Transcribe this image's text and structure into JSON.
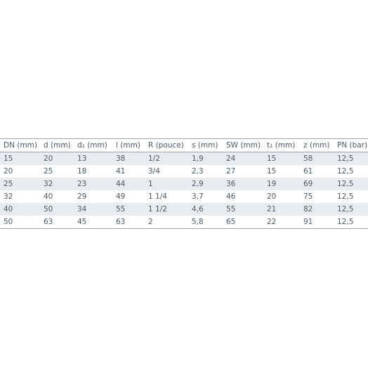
{
  "table": {
    "header": [
      "DN (mm)",
      "d (mm)",
      "d₂ (mm)",
      "l (mm)",
      "R (pouce)",
      "s (mm)",
      "SW (mm)",
      "t₁ (mm)",
      "z (mm)",
      "PN (bar)"
    ],
    "rows": [
      [
        "15",
        "20",
        "13",
        "38",
        "1/2",
        "1,9",
        "24",
        "15",
        "58",
        "12,5"
      ],
      [
        "20",
        "25",
        "18",
        "41",
        "3/4",
        "2,3",
        "27",
        "15",
        "61",
        "12,5"
      ],
      [
        "25",
        "32",
        "23",
        "44",
        "1",
        "2,9",
        "36",
        "19",
        "69",
        "12,5"
      ],
      [
        "32",
        "40",
        "29",
        "49",
        "1 1/4",
        "3,7",
        "46",
        "20",
        "75",
        "12,5"
      ],
      [
        "40",
        "50",
        "34",
        "55",
        "1 1/2",
        "4,6",
        "55",
        "21",
        "82",
        "12,5"
      ],
      [
        "50",
        "63",
        "45",
        "63",
        "2",
        "5,8",
        "65",
        "22",
        "91",
        "12,5"
      ]
    ]
  }
}
